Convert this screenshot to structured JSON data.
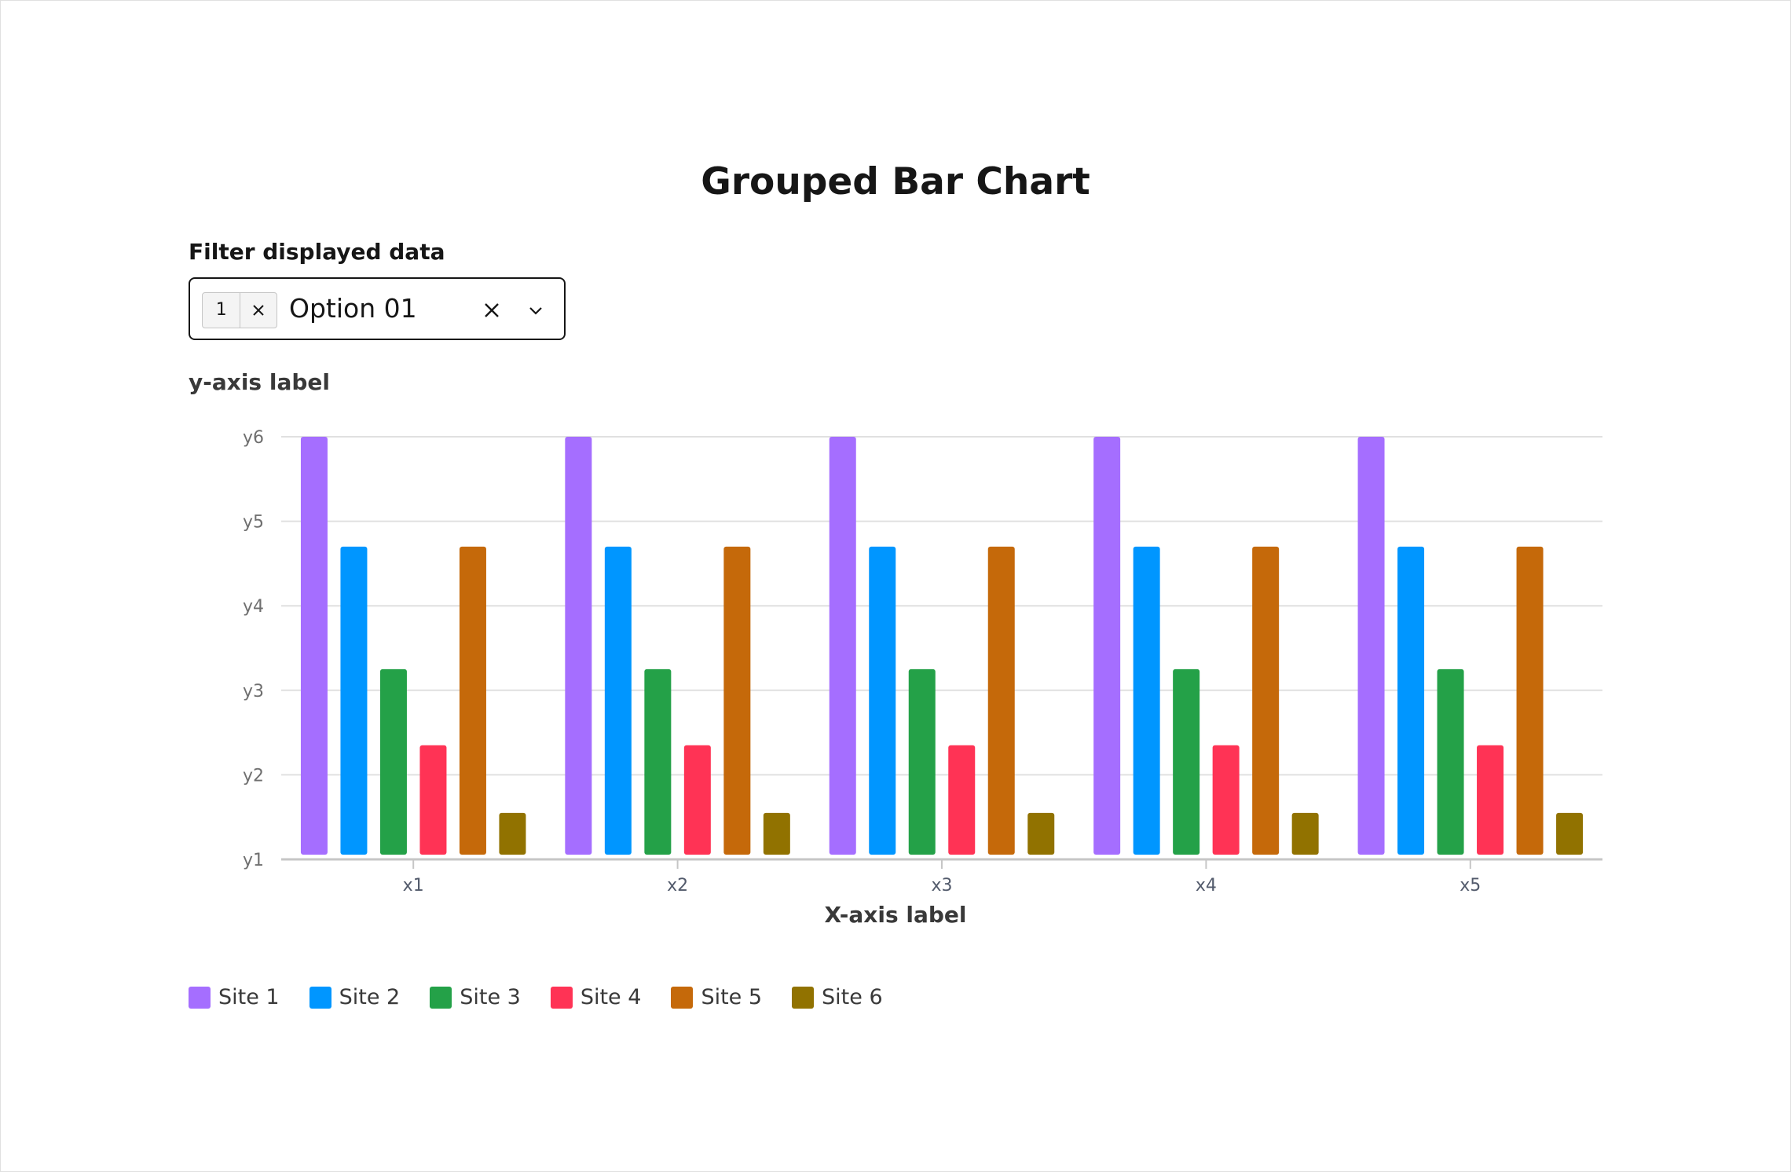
{
  "title": "Grouped Bar Chart",
  "filter": {
    "label": "Filter displayed data",
    "selected_count": "1",
    "value": "Option 01"
  },
  "icons": {
    "tag_clear": "close-icon",
    "clear_all": "close-icon",
    "dropdown": "chevron-down-icon"
  },
  "colors": {
    "Site 1": "#a56eff",
    "Site 2": "#0096ff",
    "Site 3": "#24a148",
    "Site 4": "#ff3355",
    "Site 5": "#c5690a",
    "Site 6": "#917200"
  },
  "chart_data": {
    "type": "bar",
    "title": "Grouped Bar Chart",
    "xlabel": "X-axis label",
    "ylabel": "y-axis label",
    "categories": [
      "x1",
      "x2",
      "x3",
      "x4",
      "x5"
    ],
    "y_ticks": [
      "y1",
      "y2",
      "y3",
      "y4",
      "y5",
      "y6"
    ],
    "ylim": [
      1,
      6
    ],
    "grid": true,
    "legend": "bottom-left",
    "series": [
      {
        "name": "Site 1",
        "values": [
          6.0,
          6.0,
          6.0,
          6.0,
          6.0
        ]
      },
      {
        "name": "Site 2",
        "values": [
          4.7,
          4.7,
          4.7,
          4.7,
          4.7
        ]
      },
      {
        "name": "Site 3",
        "values": [
          3.25,
          3.25,
          3.25,
          3.25,
          3.25
        ]
      },
      {
        "name": "Site 4",
        "values": [
          2.35,
          2.35,
          2.35,
          2.35,
          2.35
        ]
      },
      {
        "name": "Site 5",
        "values": [
          4.7,
          4.7,
          4.7,
          4.7,
          4.7
        ]
      },
      {
        "name": "Site 6",
        "values": [
          1.55,
          1.55,
          1.55,
          1.55,
          1.55
        ]
      }
    ]
  }
}
